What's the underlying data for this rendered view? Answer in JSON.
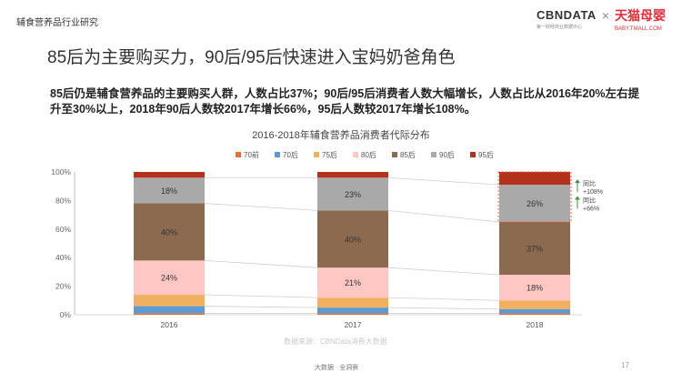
{
  "top_label": "辅食营养品行业研究",
  "logos": {
    "cbndata": "CBNDATA",
    "cbndata_sub": "第一财经商业数据中心",
    "cross": "×",
    "tmall": "天猫母婴",
    "tmall_sub": "BABY.TMALL.COM"
  },
  "headline": "85后为主要购买力，90后/95后快速进入宝妈奶爸角色",
  "description": "85后仍是辅食营养品的主要购买人群，人数占比37%；90后/95后消费者人数大幅增长，人数占比从2016年20%左右提升至30%以上，2018年90后人数较2017年增长66%，95后人数较2017年增长108%。",
  "chart_data": {
    "type": "bar",
    "stacked": true,
    "title": "2016-2018年辅食营养品消费者代际分布",
    "categories": [
      "2016",
      "2017",
      "2018"
    ],
    "y_ticks": [
      "0%",
      "20%",
      "40%",
      "60%",
      "80%",
      "100%"
    ],
    "ylim": [
      0,
      100
    ],
    "series": [
      {
        "name": "70前",
        "color": "#e4703a",
        "values": [
          1,
          1,
          1
        ]
      },
      {
        "name": "70后",
        "color": "#5b9bd5",
        "values": [
          5,
          4,
          3
        ]
      },
      {
        "name": "75后",
        "color": "#f0b060",
        "values": [
          8,
          7,
          6
        ]
      },
      {
        "name": "80后",
        "color": "#ffc7c4",
        "values": [
          24,
          21,
          18
        ]
      },
      {
        "name": "85后",
        "color": "#8c6a4f",
        "values": [
          40,
          40,
          37
        ]
      },
      {
        "name": "90后",
        "color": "#a9a9a9",
        "values": [
          18,
          23,
          26
        ]
      },
      {
        "name": "95后",
        "color": "#b3321b",
        "values": [
          4,
          4,
          9
        ]
      }
    ],
    "data_labels": [
      {
        "category": "2016",
        "series": "80后",
        "text": "24%"
      },
      {
        "category": "2016",
        "series": "85后",
        "text": "40%"
      },
      {
        "category": "2016",
        "series": "90后",
        "text": "18%"
      },
      {
        "category": "2017",
        "series": "80后",
        "text": "21%"
      },
      {
        "category": "2017",
        "series": "85后",
        "text": "40%"
      },
      {
        "category": "2017",
        "series": "90后",
        "text": "23%"
      },
      {
        "category": "2018",
        "series": "80后",
        "text": "18%"
      },
      {
        "category": "2018",
        "series": "85后",
        "text": "37%"
      },
      {
        "category": "2018",
        "series": "90后",
        "text": "26%"
      }
    ],
    "annotations": [
      {
        "label": "同比",
        "value": "+108%",
        "target": "95后 2018"
      },
      {
        "label": "同比",
        "value": "+66%",
        "target": "90后 2018"
      }
    ],
    "legend_position": "top"
  },
  "source": "数据来源：CBNData消费大数据",
  "footer": "大数据 · 全洞察",
  "page_number": "17"
}
